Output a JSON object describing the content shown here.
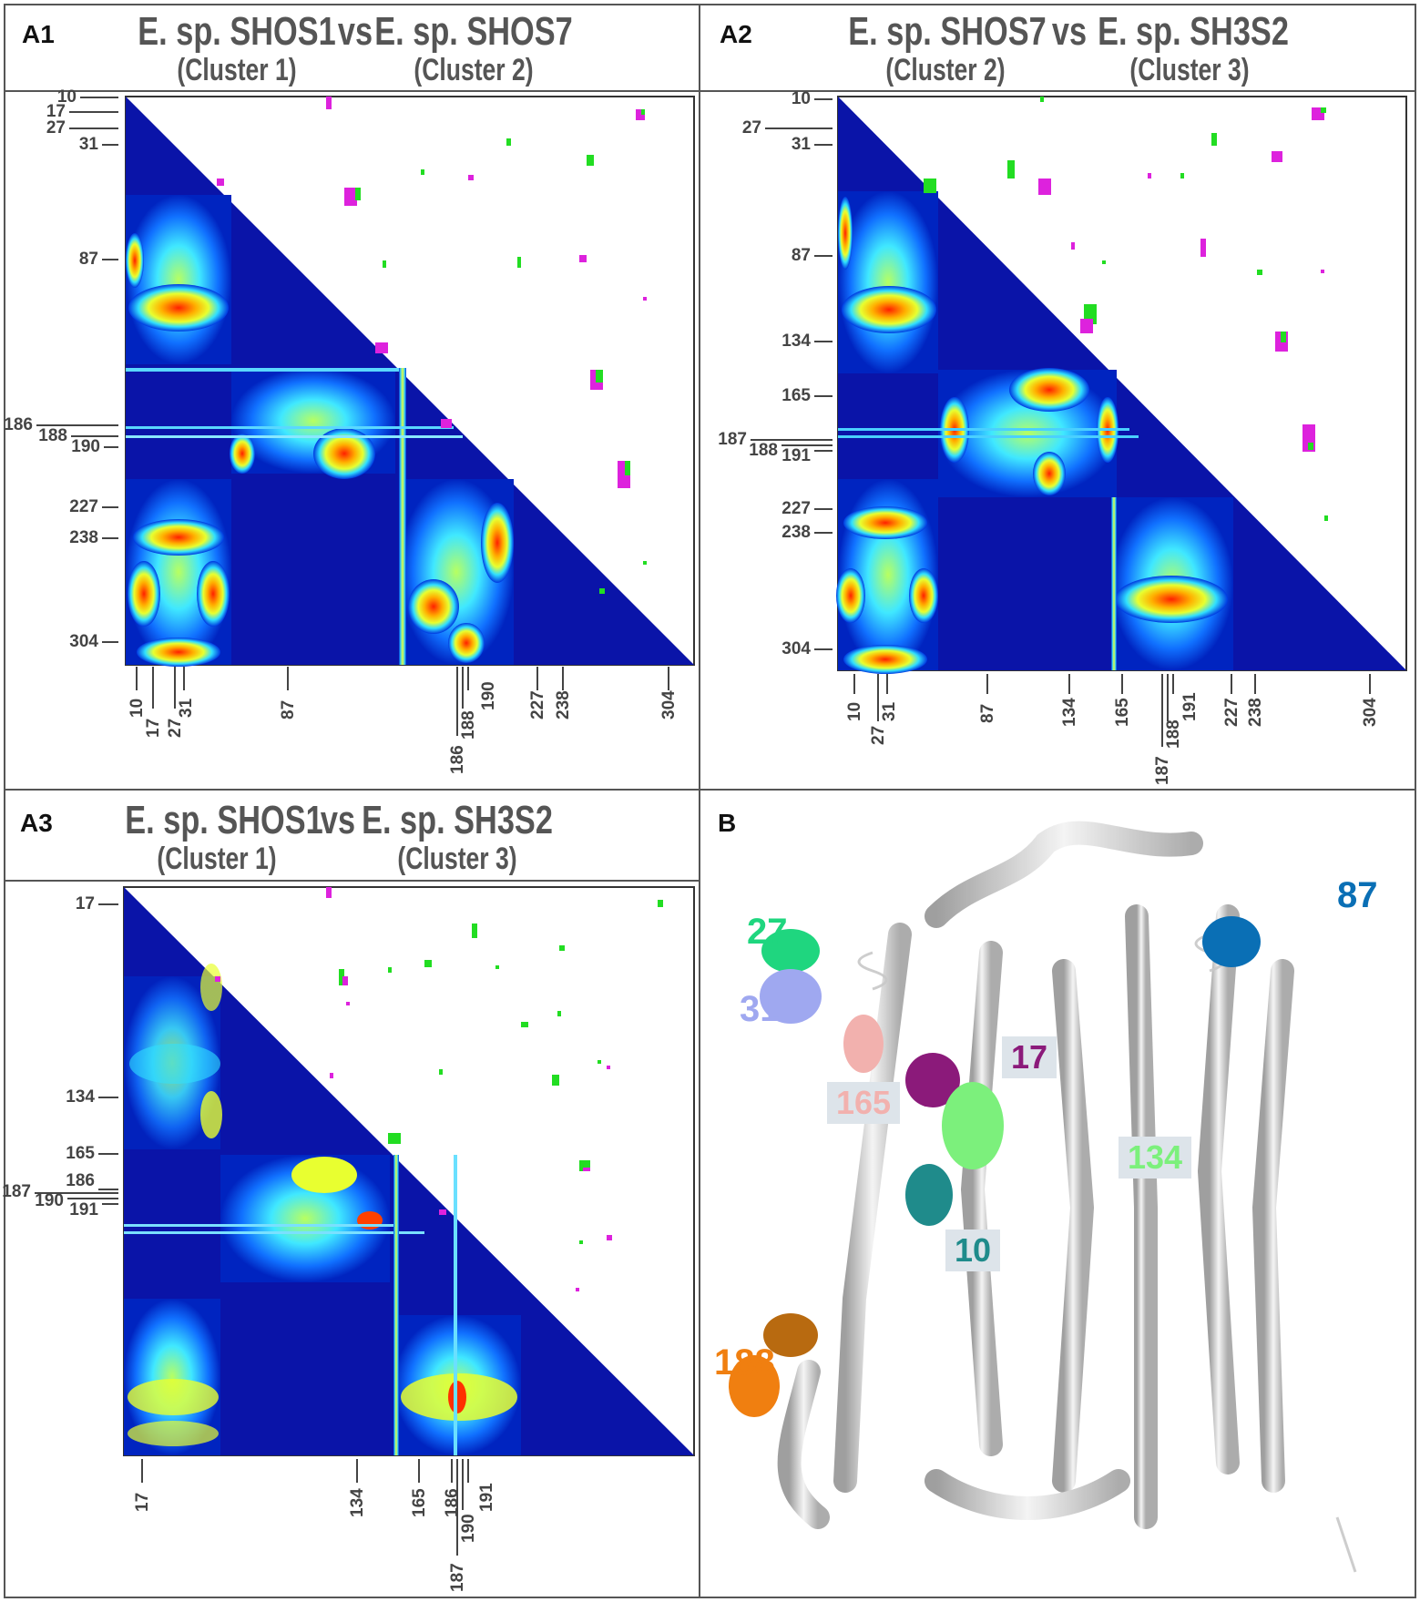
{
  "panels": {
    "a1": {
      "label": "A1",
      "title_left": "E. sp. SHOS1",
      "vs": "vs",
      "title_right": "E. sp. SHOS7",
      "cluster_left": "(Cluster 1)",
      "cluster_right": "(Cluster 2)",
      "left_ticks": [
        "10",
        "17",
        "27",
        "31",
        "87",
        "186",
        "188",
        "190",
        "227",
        "238",
        "304"
      ],
      "bottom_ticks": [
        "10",
        "17",
        "27",
        "31",
        "87",
        "186",
        "188",
        "190",
        "227",
        "238",
        "304"
      ]
    },
    "a2": {
      "label": "A2",
      "title_left": "E. sp. SHOS7",
      "vs": "vs",
      "title_right": "E. sp. SH3S2",
      "cluster_left": "(Cluster 2)",
      "cluster_right": "(Cluster 3)",
      "left_ticks": [
        "10",
        "27",
        "31",
        "87",
        "134",
        "165",
        "187",
        "188",
        "191",
        "227",
        "238",
        "304"
      ],
      "bottom_ticks": [
        "10",
        "27",
        "31",
        "87",
        "134",
        "165",
        "187",
        "188",
        "191",
        "227",
        "238",
        "304"
      ]
    },
    "a3": {
      "label": "A3",
      "title_left": "E. sp. SHOS1",
      "vs": "vs",
      "title_right": "E. sp. SH3S2",
      "cluster_left": "(Cluster 1)",
      "cluster_right": "(Cluster 3)",
      "left_ticks": [
        "17",
        "134",
        "165",
        "186",
        "187",
        "190",
        "191"
      ],
      "bottom_ticks": [
        "17",
        "134",
        "165",
        "186",
        "187",
        "190",
        "191"
      ]
    },
    "b": {
      "label": "B",
      "residues": [
        {
          "label": "27",
          "color": "#1fd67f"
        },
        {
          "label": "31",
          "color": "#9fa8f0"
        },
        {
          "label": "87",
          "color": "#0a6fb5"
        },
        {
          "label": "17",
          "color": "#8b1a7a"
        },
        {
          "label": "165",
          "color": "#f2b1ae"
        },
        {
          "label": "134",
          "color": "#7cf07c"
        },
        {
          "label": "10",
          "color": "#1f8b8b"
        },
        {
          "label": "188",
          "color": "#f07f10"
        }
      ]
    }
  },
  "colors": {
    "heat_low": "#00008b",
    "heat_mid": "#00c8ff",
    "heat_high": "#ff2a00",
    "scatter_green": "#22dd22",
    "scatter_magenta": "#dd22dd",
    "border": "#555555"
  }
}
